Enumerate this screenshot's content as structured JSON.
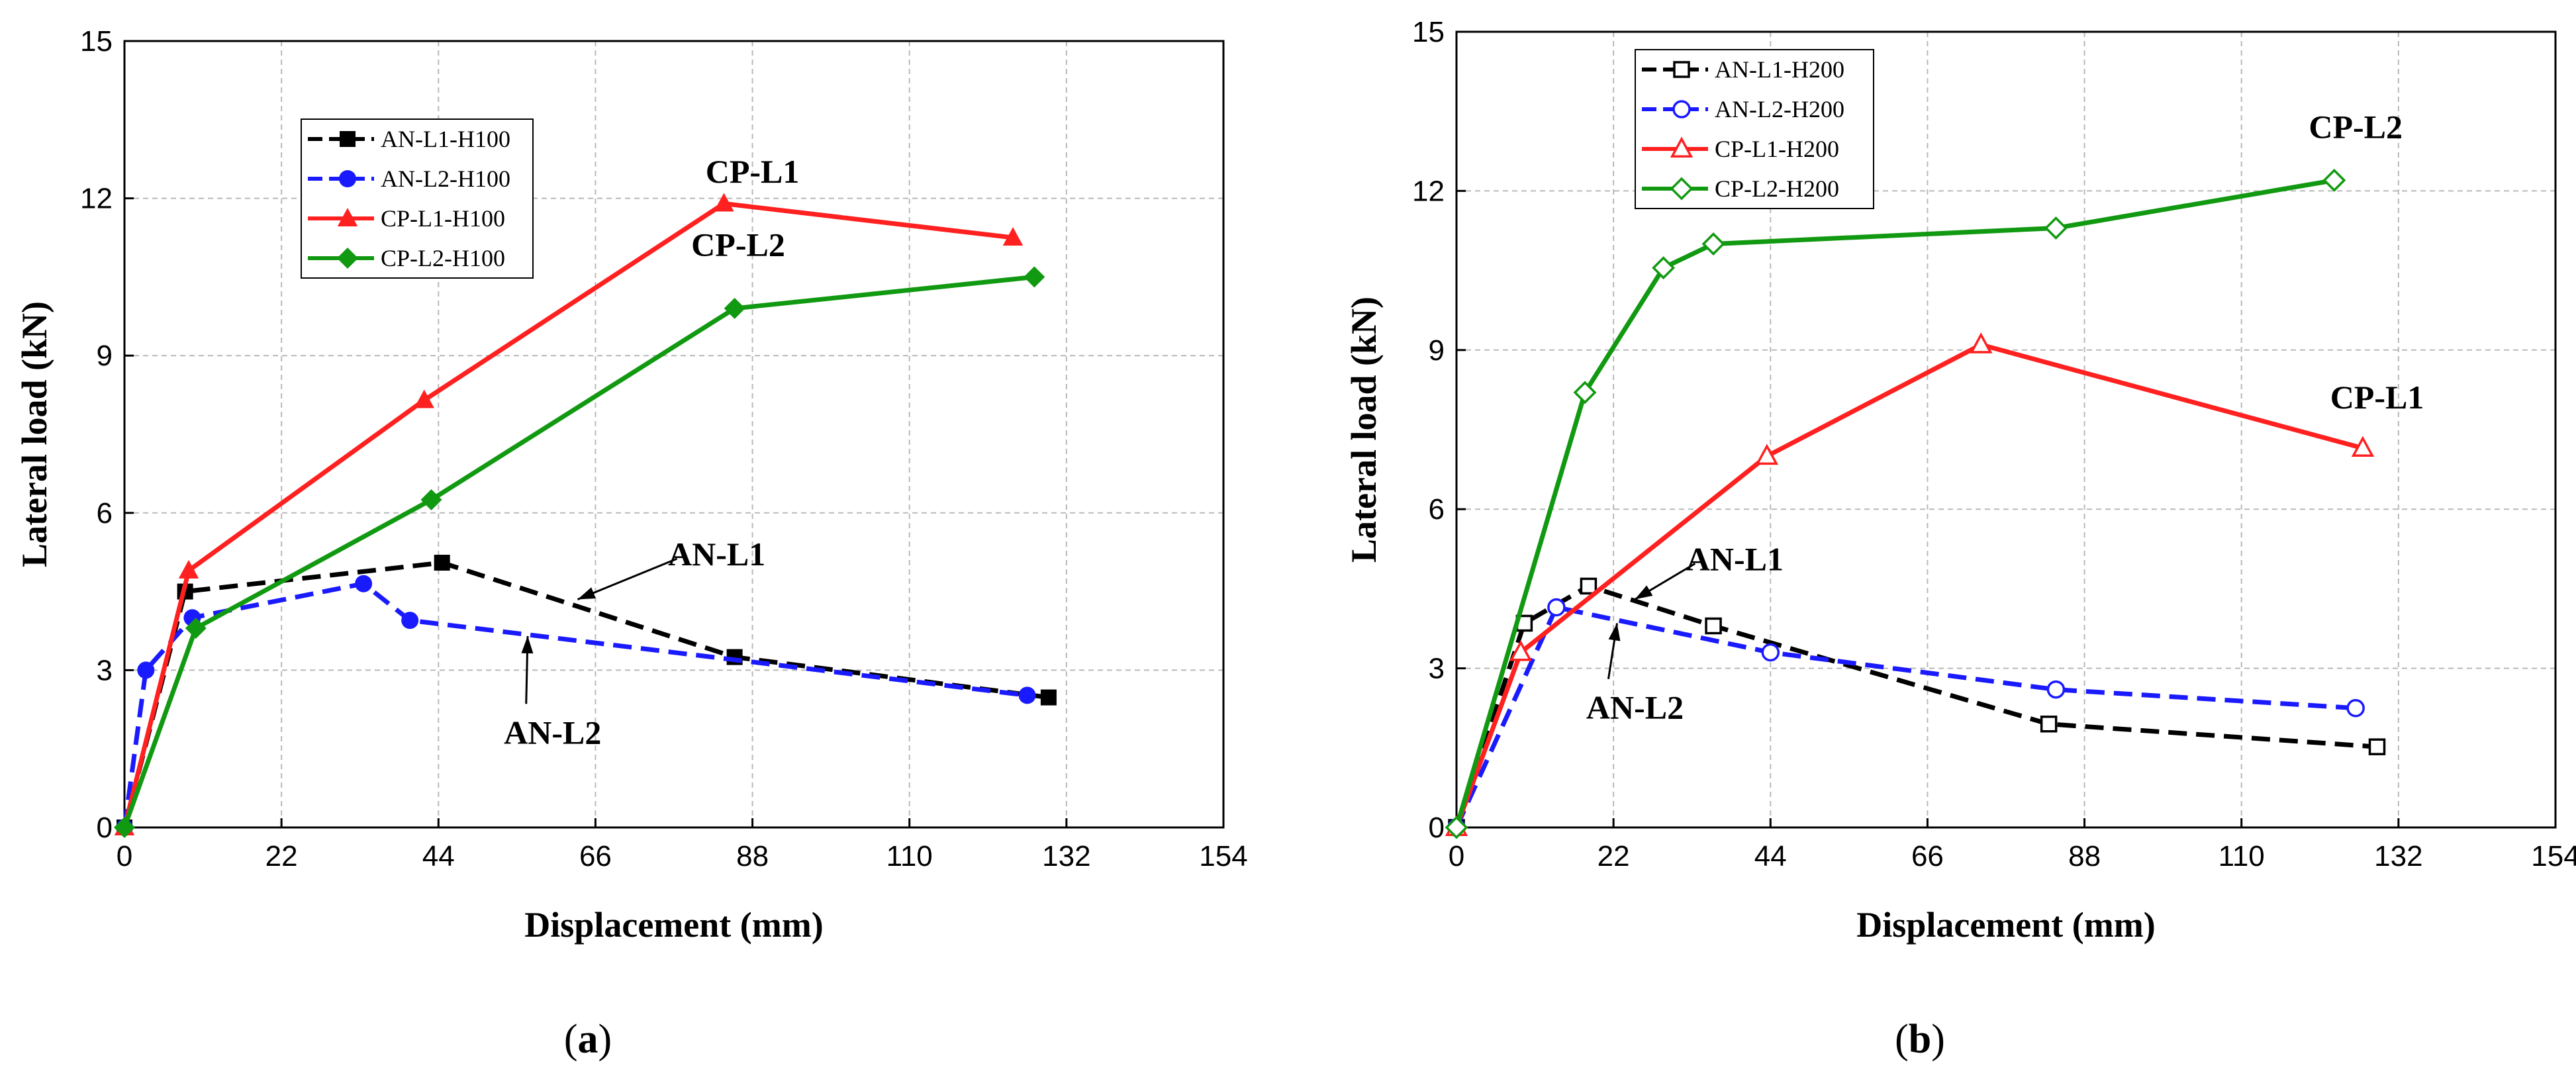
{
  "chart_data": [
    {
      "type": "line",
      "caption": "(a)",
      "caption_letter": "a",
      "xlabel": "Displacement (mm)",
      "ylabel": "Lateral load (kN)",
      "xlim": [
        0,
        154
      ],
      "ylim": [
        0,
        15
      ],
      "xticks": [
        0,
        22,
        44,
        66,
        88,
        110,
        132,
        154
      ],
      "yticks": [
        0,
        3,
        6,
        9,
        12,
        15
      ],
      "grid": true,
      "legend_position": "upper-left",
      "series": [
        {
          "name": "AN-L1-H100",
          "color": "#000000",
          "dash": "dashed",
          "marker": "square-filled",
          "x": [
            0,
            8.5,
            44.5,
            85.5,
            129.5
          ],
          "y": [
            0,
            4.5,
            5.05,
            3.25,
            2.48
          ]
        },
        {
          "name": "AN-L2-H100",
          "color": "#1a1aff",
          "dash": "dashed",
          "marker": "circle-filled",
          "x": [
            0,
            3,
            9.5,
            33.5,
            40,
            126.5
          ],
          "y": [
            0,
            3.0,
            4.0,
            4.65,
            3.95,
            2.52
          ]
        },
        {
          "name": "CP-L1-H100",
          "color": "#ff2020",
          "dash": "solid",
          "marker": "triangle-filled",
          "x": [
            0,
            9,
            42,
            84,
            124.5
          ],
          "y": [
            0,
            4.9,
            8.15,
            11.9,
            11.25
          ]
        },
        {
          "name": "CP-L2-H100",
          "color": "#119911",
          "dash": "solid",
          "marker": "diamond-filled",
          "x": [
            0,
            10,
            43,
            85.5,
            127.5
          ],
          "y": [
            0,
            3.8,
            6.25,
            9.9,
            10.5
          ]
        }
      ],
      "annotations": [
        {
          "text": "CP-L1",
          "x": 88,
          "y": 12.3
        },
        {
          "text": "CP-L2",
          "x": 86,
          "y": 10.9
        },
        {
          "text": "AN-L1",
          "x": 83,
          "y": 5.0,
          "arrow_to": [
            63.5,
            4.35
          ]
        },
        {
          "text": "AN-L2",
          "x": 60,
          "y": 1.6,
          "arrow_to": [
            56.5,
            3.65
          ]
        }
      ]
    },
    {
      "type": "line",
      "caption": "(b)",
      "caption_letter": "b",
      "xlabel": "Displacement (mm)",
      "ylabel": "Lateral load (kN)",
      "xlim": [
        0,
        154
      ],
      "ylim": [
        0,
        15
      ],
      "xticks": [
        0,
        22,
        44,
        66,
        88,
        110,
        132,
        154
      ],
      "yticks": [
        0,
        3,
        6,
        9,
        12,
        15
      ],
      "grid": true,
      "legend_position": "upper-left",
      "series": [
        {
          "name": "AN-L1-H200",
          "color": "#000000",
          "dash": "dashed",
          "marker": "square-open",
          "x": [
            0,
            9.5,
            18.5,
            36,
            83,
            129
          ],
          "y": [
            0,
            3.85,
            4.55,
            3.8,
            1.95,
            1.52
          ]
        },
        {
          "name": "AN-L2-H200",
          "color": "#1a1aff",
          "dash": "dashed",
          "marker": "circle-open",
          "x": [
            0,
            14,
            44,
            84,
            126
          ],
          "y": [
            0,
            4.15,
            3.3,
            2.6,
            2.25
          ]
        },
        {
          "name": "CP-L1-H200",
          "color": "#ff2020",
          "dash": "solid",
          "marker": "triangle-open",
          "x": [
            0,
            9,
            43.5,
            73.5,
            127
          ],
          "y": [
            0,
            3.3,
            7.0,
            9.1,
            7.15
          ]
        },
        {
          "name": "CP-L2-H200",
          "color": "#119911",
          "dash": "solid",
          "marker": "diamond-open",
          "x": [
            0,
            18,
            29,
            36,
            84,
            123
          ],
          "y": [
            0,
            8.2,
            10.55,
            11.0,
            11.3,
            12.2
          ]
        }
      ],
      "annotations": [
        {
          "text": "CP-L2",
          "x": 126,
          "y": 13.0
        },
        {
          "text": "CP-L1",
          "x": 129,
          "y": 7.9
        },
        {
          "text": "AN-L1",
          "x": 39,
          "y": 4.85,
          "arrow_to": [
            25,
            4.3
          ]
        },
        {
          "text": "AN-L2",
          "x": 25,
          "y": 2.05,
          "arrow_to": [
            22.5,
            3.85
          ]
        }
      ]
    }
  ]
}
